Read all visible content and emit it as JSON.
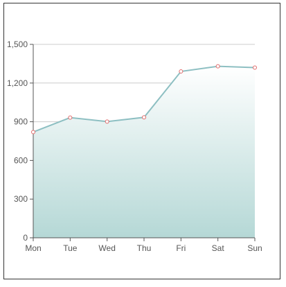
{
  "chart_data": {
    "type": "area",
    "categories": [
      "Mon",
      "Tue",
      "Wed",
      "Thu",
      "Fri",
      "Sat",
      "Sun"
    ],
    "series": [
      {
        "values": [
          820,
          932,
          901,
          934,
          1290,
          1330,
          1320
        ]
      }
    ],
    "ylim": [
      0,
      1500
    ],
    "yticks": [
      "0",
      "300",
      "600",
      "900",
      "1,200",
      "1,500"
    ],
    "grid": true,
    "colors": {
      "line": "#8dbfc2",
      "area_top": "#ffffff",
      "area_bottom": "#b5d8d6",
      "point_stroke": "#e06a6a"
    }
  }
}
